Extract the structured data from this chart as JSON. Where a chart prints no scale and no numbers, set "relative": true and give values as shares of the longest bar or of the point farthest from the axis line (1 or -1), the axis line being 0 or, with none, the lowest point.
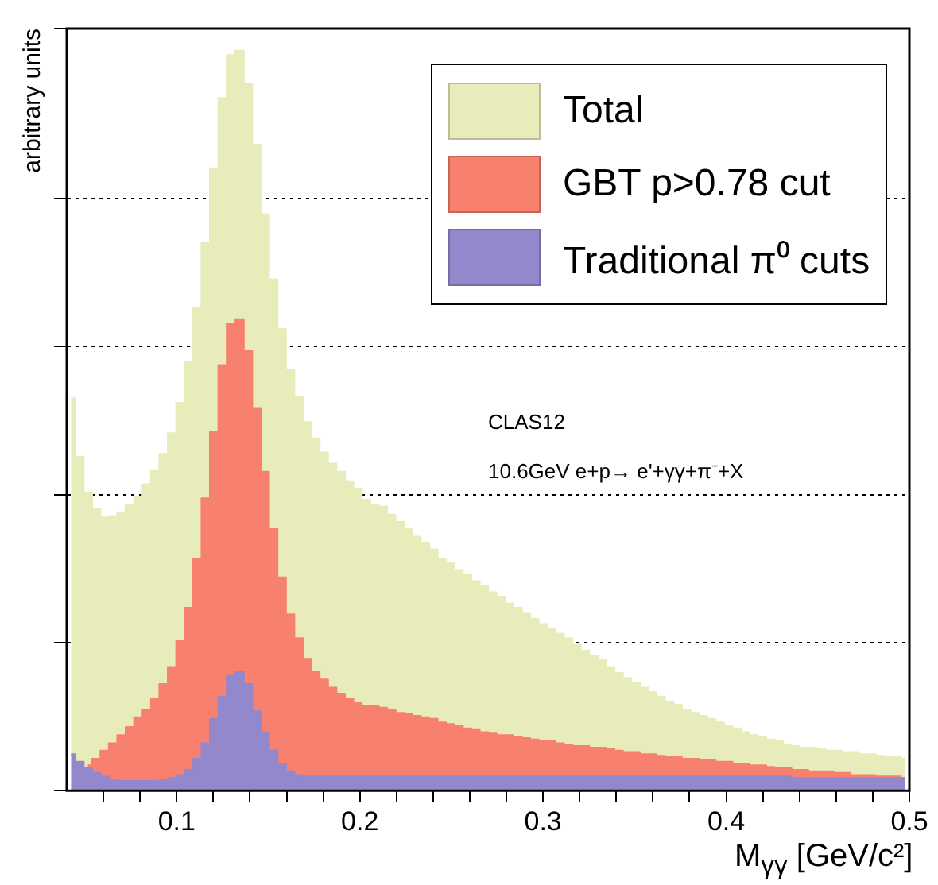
{
  "chart_data": {
    "type": "area",
    "relative": true,
    "xlabel": "M$_{γγ}$ [GeV/c²]",
    "ylabel": "arbitrary units",
    "xlim": [
      0.04,
      0.5
    ],
    "xticks": [
      {
        "value": 0.06,
        "label": null
      },
      {
        "value": 0.08,
        "label": null
      },
      0.1,
      {
        "value": 0.12,
        "label": null
      },
      {
        "value": 0.14,
        "label": null
      },
      {
        "value": 0.16,
        "label": null
      },
      {
        "value": 0.18,
        "label": null
      },
      0.2,
      {
        "value": 0.22,
        "label": null
      },
      {
        "value": 0.24,
        "label": null
      },
      {
        "value": 0.26,
        "label": null
      },
      {
        "value": 0.28,
        "label": null
      },
      0.3,
      {
        "value": 0.32,
        "label": null
      },
      {
        "value": 0.34,
        "label": null
      },
      {
        "value": 0.36,
        "label": null
      },
      {
        "value": 0.38,
        "label": null
      },
      0.4,
      {
        "value": 0.42,
        "label": null
      },
      {
        "value": 0.44,
        "label": null
      },
      {
        "value": 0.46,
        "label": null
      },
      {
        "value": 0.48,
        "label": null
      },
      0.5
    ],
    "grid": "y",
    "legend": "top right",
    "annotations": [
      "CLAS12",
      "10.6GeV e+p→ e'+γγ+π⁻+X"
    ],
    "x": [
      0.0423,
      0.0469,
      0.0515,
      0.0561,
      0.0607,
      0.0653,
      0.0699,
      0.0745,
      0.0791,
      0.0837,
      0.0883,
      0.0929,
      0.0975,
      0.1021,
      0.1067,
      0.1113,
      0.1159,
      0.1205,
      0.1251,
      0.1297,
      0.1343,
      0.1389,
      0.1435,
      0.1481,
      0.1527,
      0.1573,
      0.1619,
      0.1665,
      0.1711,
      0.1757,
      0.1803,
      0.1849,
      0.1895,
      0.1941,
      0.1987,
      0.2033,
      0.2079,
      0.2125,
      0.2171,
      0.2217,
      0.2263,
      0.2309,
      0.2355,
      0.2401,
      0.2447,
      0.2493,
      0.2539,
      0.2585,
      0.2631,
      0.2677,
      0.2723,
      0.2769,
      0.2815,
      0.2861,
      0.2907,
      0.2953,
      0.2999,
      0.3045,
      0.3091,
      0.3137,
      0.3183,
      0.3229,
      0.3275,
      0.3321,
      0.3367,
      0.3413,
      0.3459,
      0.3505,
      0.3551,
      0.3597,
      0.3643,
      0.3689,
      0.3735,
      0.3781,
      0.3827,
      0.3873,
      0.3919,
      0.3965,
      0.4011,
      0.4057,
      0.4103,
      0.4149,
      0.4195,
      0.4241,
      0.4287,
      0.4333,
      0.4379,
      0.4425,
      0.4471,
      0.4517,
      0.4563,
      0.4609,
      0.4655,
      0.4701,
      0.4747,
      0.4793,
      0.4839,
      0.4885,
      0.4931,
      0.4977
    ],
    "series": [
      {
        "name": "Total",
        "color": "#e8ecbb",
        "values": [
          0.53,
          0.451,
          0.403,
          0.38,
          0.369,
          0.371,
          0.376,
          0.386,
          0.397,
          0.414,
          0.433,
          0.455,
          0.483,
          0.524,
          0.579,
          0.652,
          0.74,
          0.841,
          0.936,
          0.994,
          1,
          0.955,
          0.873,
          0.779,
          0.691,
          0.624,
          0.569,
          0.532,
          0.498,
          0.476,
          0.457,
          0.442,
          0.431,
          0.418,
          0.408,
          0.393,
          0.386,
          0.384,
          0.373,
          0.363,
          0.354,
          0.343,
          0.335,
          0.326,
          0.313,
          0.307,
          0.298,
          0.292,
          0.283,
          0.277,
          0.268,
          0.262,
          0.253,
          0.247,
          0.24,
          0.232,
          0.225,
          0.219,
          0.212,
          0.206,
          0.197,
          0.189,
          0.182,
          0.176,
          0.167,
          0.159,
          0.152,
          0.146,
          0.139,
          0.133,
          0.127,
          0.12,
          0.116,
          0.109,
          0.105,
          0.101,
          0.097,
          0.092,
          0.088,
          0.084,
          0.079,
          0.075,
          0.073,
          0.069,
          0.067,
          0.062,
          0.06,
          0.058,
          0.058,
          0.056,
          0.054,
          0.054,
          0.052,
          0.052,
          0.049,
          0.049,
          0.047,
          0.045,
          0.045,
          0.043
        ]
      },
      {
        "name": "GBT p>0.78 cut",
        "color": "#f8806f",
        "values": [
          null,
          null,
          0.034,
          0.043,
          0.054,
          0.064,
          0.075,
          0.086,
          0.099,
          0.109,
          0.124,
          0.144,
          0.167,
          0.202,
          0.247,
          0.313,
          0.395,
          0.485,
          0.575,
          0.631,
          0.637,
          0.594,
          0.517,
          0.431,
          0.354,
          0.288,
          0.238,
          0.206,
          0.178,
          0.161,
          0.15,
          0.139,
          0.131,
          0.124,
          0.118,
          0.114,
          0.114,
          0.112,
          0.109,
          0.105,
          0.103,
          0.101,
          0.099,
          0.097,
          0.092,
          0.09,
          0.088,
          0.084,
          0.082,
          0.079,
          0.077,
          0.075,
          0.075,
          0.073,
          0.071,
          0.069,
          0.067,
          0.067,
          0.064,
          0.062,
          0.06,
          0.06,
          0.058,
          0.058,
          0.056,
          0.054,
          0.052,
          0.052,
          0.049,
          0.049,
          0.047,
          0.045,
          0.045,
          0.043,
          0.043,
          0.041,
          0.041,
          0.039,
          0.039,
          0.036,
          0.036,
          0.034,
          0.034,
          0.032,
          0.03,
          0.03,
          0.028,
          0.028,
          0.026,
          0.026,
          0.026,
          0.024,
          0.024,
          0.021,
          0.021,
          0.021,
          0.019,
          0.019,
          0.019,
          0.017
        ]
      },
      {
        "name": "Traditional π⁰ cuts",
        "color": "#9488cc",
        "values": [
          0.049,
          0.039,
          0.03,
          0.024,
          0.019,
          0.015,
          0.013,
          0.013,
          0.013,
          0.013,
          0.013,
          0.015,
          0.017,
          0.021,
          0.028,
          0.043,
          0.064,
          0.097,
          0.127,
          0.155,
          0.161,
          0.144,
          0.107,
          0.079,
          0.054,
          0.036,
          0.026,
          0.021,
          0.019,
          0.019,
          0.019,
          0.019,
          0.019,
          0.019,
          0.019,
          0.019,
          0.019,
          0.019,
          0.019,
          0.019,
          0.019,
          0.019,
          0.019,
          0.019,
          0.019,
          0.019,
          0.019,
          0.019,
          0.019,
          0.019,
          0.019,
          0.019,
          0.019,
          0.019,
          0.019,
          0.019,
          0.019,
          0.019,
          0.019,
          0.019,
          0.019,
          0.019,
          0.019,
          0.019,
          0.019,
          0.019,
          0.019,
          0.019,
          0.019,
          0.019,
          0.019,
          0.019,
          0.019,
          0.019,
          0.019,
          0.019,
          0.019,
          0.019,
          0.019,
          0.019,
          0.019,
          0.019,
          0.019,
          0.019,
          0.019,
          0.019,
          0.017,
          0.017,
          0.017,
          0.017,
          0.017,
          0.017,
          0.017,
          0.017,
          0.017,
          0.017,
          0.017,
          0.017,
          0.017,
          0.017
        ]
      }
    ]
  }
}
